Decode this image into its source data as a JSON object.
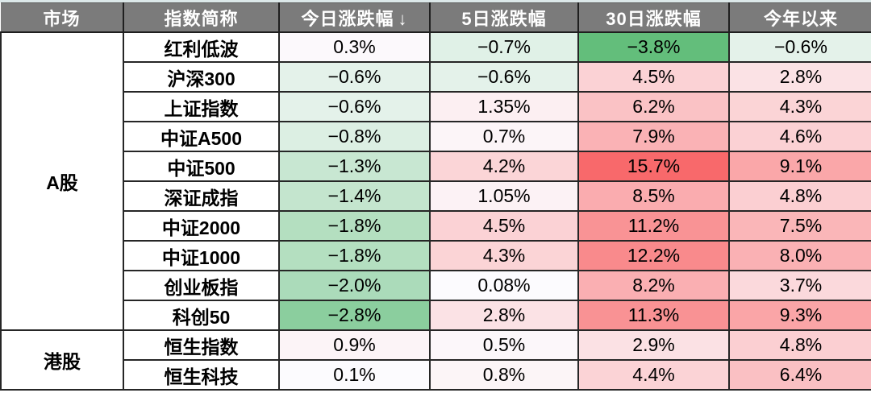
{
  "colors": {
    "header_bg": "#7b7b7b",
    "header_text": "#ffffff",
    "grid_border": "#262626",
    "row_bg": "#ffffff",
    "top_strip": "#dce8e9",
    "negative_green": "#63be7b",
    "neutral_white": "#fcfcff",
    "positive_red": "#f8696b"
  },
  "chart_data": {
    "type": "table",
    "columns": [
      "市场",
      "指数简称",
      "今日涨跌幅",
      "5日涨跌幅",
      "30日涨跌幅",
      "今年以来"
    ],
    "sort_indicator": "↓",
    "groups": [
      {
        "market": "A股",
        "rows": [
          {
            "name": "红利低波",
            "values": [
              "0.3%",
              "−0.7%",
              "−3.8%",
              "−0.6%"
            ]
          },
          {
            "name": "沪深300",
            "values": [
              "−0.6%",
              "−0.6%",
              "4.5%",
              "2.8%"
            ]
          },
          {
            "name": "上证指数",
            "values": [
              "−0.6%",
              "1.35%",
              "6.2%",
              "4.3%"
            ]
          },
          {
            "name": "中证A500",
            "values": [
              "−0.8%",
              "0.7%",
              "7.9%",
              "4.6%"
            ]
          },
          {
            "name": "中证500",
            "values": [
              "−1.3%",
              "4.2%",
              "15.7%",
              "9.1%"
            ]
          },
          {
            "name": "深证成指",
            "values": [
              "−1.4%",
              "1.05%",
              "8.5%",
              "4.8%"
            ]
          },
          {
            "name": "中证2000",
            "values": [
              "−1.8%",
              "4.5%",
              "11.2%",
              "7.5%"
            ]
          },
          {
            "name": "中证1000",
            "values": [
              "−1.8%",
              "4.3%",
              "12.2%",
              "8.0%"
            ]
          },
          {
            "name": "创业板指",
            "values": [
              "−2.0%",
              "0.08%",
              "8.2%",
              "3.7%"
            ]
          },
          {
            "name": "科创50",
            "values": [
              "−2.8%",
              "2.8%",
              "11.3%",
              "9.3%"
            ]
          }
        ]
      },
      {
        "market": "港股",
        "rows": [
          {
            "name": "恒生指数",
            "values": [
              "0.9%",
              "0.5%",
              "2.9%",
              "4.8%"
            ]
          },
          {
            "name": "恒生科技",
            "values": [
              "0.1%",
              "0.8%",
              "4.4%",
              "6.4%"
            ]
          }
        ]
      }
    ],
    "color_scale": {
      "type": "3-color",
      "min_value": -3.8,
      "mid_value": 0,
      "max_value": 15.7,
      "min_color": "#63be7b",
      "mid_color": "#fcfcff",
      "max_color": "#f8696b"
    }
  }
}
